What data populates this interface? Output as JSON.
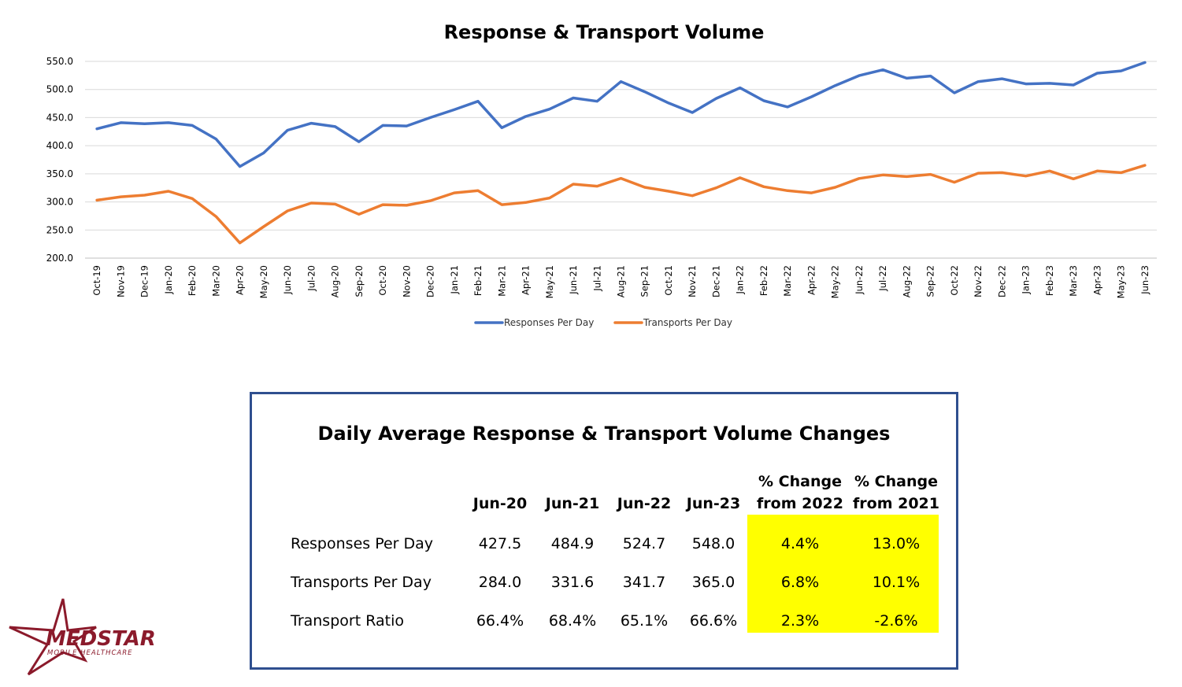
{
  "chart_data": {
    "type": "line",
    "title": "Response & Transport Volume",
    "categories": [
      "Oct-19",
      "Nov-19",
      "Dec-19",
      "Jan-20",
      "Feb-20",
      "Mar-20",
      "Apr-20",
      "May-20",
      "Jun-20",
      "Jul-20",
      "Aug-20",
      "Sep-20",
      "Oct-20",
      "Nov-20",
      "Dec-20",
      "Jan-21",
      "Feb-21",
      "Mar-21",
      "Apr-21",
      "May-21",
      "Jun-21",
      "Jul-21",
      "Aug-21",
      "Sep-21",
      "Oct-21",
      "Nov-21",
      "Dec-21",
      "Jan-22",
      "Feb-22",
      "Mar-22",
      "Apr-22",
      "May-22",
      "Jun-22",
      "Jul-22",
      "Aug-22",
      "Sep-22",
      "Oct-22",
      "Nov-22",
      "Dec-22",
      "Jan-23",
      "Feb-23",
      "Mar-23",
      "Apr-23",
      "May-23",
      "Jun-23"
    ],
    "ylim": [
      200,
      550
    ],
    "yticks": [
      "200.0",
      "250.0",
      "300.0",
      "350.0",
      "400.0",
      "450.0",
      "500.0",
      "550.0"
    ],
    "grid": true,
    "legend_position": "bottom",
    "series": [
      {
        "name": "Responses Per Day",
        "color": "#4472c4",
        "values": [
          430,
          441,
          439,
          441,
          436,
          412,
          363,
          387,
          427.5,
          440,
          434,
          407,
          436,
          435,
          450,
          464,
          479,
          432,
          452,
          465,
          484.9,
          479,
          514,
          496,
          476,
          459,
          484,
          503,
          480,
          469,
          487,
          507,
          524.7,
          535,
          520,
          524,
          494,
          514,
          519,
          510,
          511,
          508,
          529,
          533,
          548
        ]
      },
      {
        "name": "Transports Per Day",
        "color": "#ed7d31",
        "values": [
          303,
          309,
          312,
          319,
          306,
          274,
          227,
          256,
          284,
          298,
          296,
          278,
          295,
          294,
          302,
          316,
          320,
          295,
          299,
          307,
          331.6,
          328,
          342,
          326,
          319,
          311,
          325,
          343,
          327,
          320,
          316,
          326,
          341.7,
          348,
          345,
          349,
          335,
          351,
          352,
          346,
          355,
          341,
          355,
          352,
          365
        ]
      }
    ]
  },
  "summary": {
    "title": "Daily Average Response & Transport Volume Changes",
    "col_headers": [
      "Jun-20",
      "Jun-21",
      "Jun-22",
      "Jun-23"
    ],
    "change_headers": [
      {
        "line1": "% Change",
        "line2": "from 2022"
      },
      {
        "line1": "% Change",
        "line2": "from 2021"
      }
    ],
    "highlight_color": "#ffff00",
    "rows": [
      {
        "label": "Responses Per Day",
        "values": [
          "427.5",
          "484.9",
          "524.7",
          "548.0"
        ],
        "changes": [
          "4.4%",
          "13.0%"
        ]
      },
      {
        "label": "Transports Per Day",
        "values": [
          "284.0",
          "331.6",
          "341.7",
          "365.0"
        ],
        "changes": [
          "6.8%",
          "10.1%"
        ]
      },
      {
        "label": "Transport Ratio",
        "values": [
          "66.4%",
          "68.4%",
          "65.1%",
          "66.6%"
        ],
        "changes": [
          "2.3%",
          "-2.6%"
        ]
      }
    ]
  },
  "logo": {
    "text": "MEDSTAR",
    "subtext": "MOBILE HEALTHCARE",
    "color": "#8b1a2b"
  }
}
